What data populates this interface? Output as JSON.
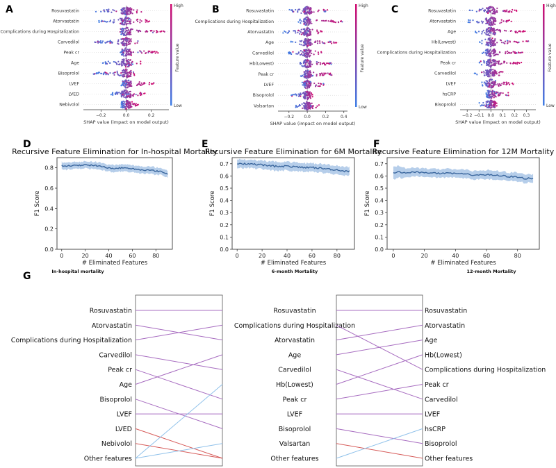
{
  "panels": {
    "shap_a_label": "A",
    "shap_b_label": "B",
    "shap_c_label": "C",
    "rfe_d_label": "D",
    "rfe_e_label": "E",
    "rfe_f_label": "F",
    "rank_g_label": "G"
  },
  "colors": {
    "high": "#d10a6f",
    "low": "#3f7fe6",
    "purple": "#a76cc0",
    "blue_line": "#8fc1ea",
    "red_line": "#d65a58",
    "rfe_line": "#3b679e",
    "rfe_band": "#a9c5e6"
  },
  "chart_data": [
    {
      "id": "A",
      "type": "scatter",
      "subtype": "shap-beeswarm",
      "features": [
        "Rosuvastatin",
        "Atorvastatin",
        "Complications during Hospitalization",
        "Carvedilol",
        "Peak cr",
        "Age",
        "Bisoprolol",
        "LVEF",
        "LVED",
        "Nebivolol"
      ],
      "xticks": [
        "−0.2",
        "0.0",
        "0.2"
      ],
      "xtick_values": [
        -0.2,
        0.0,
        0.2
      ],
      "xlim": [
        -0.34,
        0.34
      ],
      "spread": [
        [
          -0.28,
          0.18
        ],
        [
          -0.22,
          0.2
        ],
        [
          -0.05,
          0.32
        ],
        [
          -0.25,
          0.1
        ],
        [
          -0.05,
          0.26
        ],
        [
          -0.2,
          0.12
        ],
        [
          -0.26,
          0.08
        ],
        [
          -0.03,
          0.22
        ],
        [
          -0.12,
          0.15
        ],
        [
          -0.04,
          0.1
        ]
      ],
      "xlabel": "SHAP value (impact on model output)",
      "colorbar_label": "Feature value",
      "colorbar_high": "High",
      "colorbar_low": "Low"
    },
    {
      "id": "B",
      "type": "scatter",
      "subtype": "shap-beeswarm",
      "features": [
        "Rosuvastatin",
        "Complications during Hospitalization",
        "Atorvastatin",
        "Age",
        "Carvedilol",
        "Hb(Lowest)",
        "Peak cr",
        "LVEF",
        "Bisoprolol",
        "Valsartan"
      ],
      "xticks": [
        "−0.2",
        "0.0",
        "0.2",
        "0.4"
      ],
      "xtick_values": [
        -0.2,
        0.0,
        0.2,
        0.4
      ],
      "xlim": [
        -0.32,
        0.44
      ],
      "spread": [
        [
          -0.22,
          0.22
        ],
        [
          -0.1,
          0.4
        ],
        [
          -0.28,
          0.18
        ],
        [
          -0.18,
          0.34
        ],
        [
          -0.22,
          0.16
        ],
        [
          -0.1,
          0.28
        ],
        [
          -0.08,
          0.3
        ],
        [
          -0.06,
          0.22
        ],
        [
          -0.18,
          0.06
        ],
        [
          -0.14,
          0.14
        ]
      ],
      "xlabel": "SHAP value (impact on model output)",
      "colorbar_label": "Feature value",
      "colorbar_high": "High",
      "colorbar_low": "Low"
    },
    {
      "id": "C",
      "type": "scatter",
      "subtype": "shap-beeswarm",
      "features": [
        "Rosuvastatin",
        "Atorvastatin",
        "Age",
        "Hb(Lowest)",
        "Complications during Hospitalization",
        "Peak cr",
        "Carvedilol",
        "LVEF",
        "hsCRP",
        "Bisoprolol"
      ],
      "xticks": [
        "−0.2",
        "−0.1",
        "0.0",
        "0.1",
        "0.2",
        "0.3"
      ],
      "xtick_values": [
        -0.2,
        -0.1,
        0.0,
        0.1,
        0.2,
        0.3
      ],
      "xlim": [
        -0.26,
        0.38
      ],
      "spread": [
        [
          -0.18,
          0.22
        ],
        [
          -0.2,
          0.18
        ],
        [
          -0.14,
          0.3
        ],
        [
          -0.1,
          0.32
        ],
        [
          -0.08,
          0.28
        ],
        [
          -0.1,
          0.26
        ],
        [
          -0.14,
          0.14
        ],
        [
          -0.08,
          0.2
        ],
        [
          -0.04,
          0.16
        ],
        [
          -0.1,
          0.06
        ]
      ],
      "xlabel": "SHAP value (impact on model output)",
      "colorbar_label": "Feature value",
      "colorbar_high": "High",
      "colorbar_low": "Low"
    },
    {
      "id": "D",
      "type": "line",
      "title": "Recursive Feature Elimination for In-hospital Mortality",
      "xlabel": "# Eliminated Features",
      "ylabel": "F1 Score",
      "xlim": [
        -4,
        94
      ],
      "ylim": [
        0.0,
        0.9
      ],
      "xticks": [
        0,
        20,
        40,
        60,
        80
      ],
      "yticks": [
        0.0,
        0.2,
        0.4,
        0.6,
        0.8
      ],
      "x": [
        0,
        10,
        20,
        30,
        40,
        45,
        50,
        60,
        70,
        80,
        85,
        90
      ],
      "y": [
        0.82,
        0.82,
        0.83,
        0.82,
        0.8,
        0.79,
        0.8,
        0.79,
        0.78,
        0.77,
        0.76,
        0.74
      ],
      "band": [
        0.03,
        0.03,
        0.03,
        0.03,
        0.03,
        0.03,
        0.03,
        0.03,
        0.03,
        0.03,
        0.03,
        0.03
      ]
    },
    {
      "id": "E",
      "type": "line",
      "title": "Recursive Feature Elimination for 6M Mortality",
      "xlabel": "# Eliminated Features",
      "ylabel": "F1 Score",
      "xlim": [
        -4,
        94
      ],
      "ylim": [
        0.0,
        0.75
      ],
      "xticks": [
        0,
        20,
        40,
        60,
        80
      ],
      "yticks": [
        0.0,
        0.1,
        0.2,
        0.3,
        0.4,
        0.5,
        0.6,
        0.7
      ],
      "x": [
        0,
        10,
        20,
        30,
        40,
        50,
        60,
        70,
        80,
        85,
        90
      ],
      "y": [
        0.7,
        0.7,
        0.69,
        0.68,
        0.68,
        0.67,
        0.67,
        0.66,
        0.65,
        0.64,
        0.64
      ],
      "band": [
        0.03,
        0.03,
        0.03,
        0.03,
        0.03,
        0.03,
        0.03,
        0.03,
        0.03,
        0.03,
        0.03
      ]
    },
    {
      "id": "F",
      "type": "line",
      "title": "Recursive Feature Elimination for 12M Mortality",
      "xlabel": "# Eliminated Features",
      "ylabel": "F1 Score",
      "xlim": [
        -4,
        94
      ],
      "ylim": [
        0.0,
        0.75
      ],
      "xticks": [
        0,
        20,
        40,
        60,
        80
      ],
      "yticks": [
        0.0,
        0.1,
        0.2,
        0.3,
        0.4,
        0.5,
        0.6,
        0.7
      ],
      "x": [
        0,
        10,
        20,
        30,
        40,
        50,
        60,
        70,
        80,
        85,
        90
      ],
      "y": [
        0.63,
        0.63,
        0.63,
        0.62,
        0.62,
        0.61,
        0.61,
        0.6,
        0.59,
        0.58,
        0.58
      ],
      "band": [
        0.05,
        0.03,
        0.03,
        0.03,
        0.03,
        0.03,
        0.03,
        0.03,
        0.03,
        0.03,
        0.03
      ]
    },
    {
      "id": "G",
      "type": "table",
      "subtype": "rank-comparison",
      "columns": [
        {
          "title": "In-hospital mortality",
          "features": [
            "Rosuvastatin",
            "Atorvastatin",
            "Complications during Hospitalization",
            "Carvedilol",
            "Peak cr",
            "Age",
            "Bisoprolol",
            "LVEF",
            "LVED",
            "Nebivolol",
            "Other features"
          ]
        },
        {
          "title": "6-month Mortality",
          "features": [
            "Rosuvastatin",
            "Complications during Hospitalization",
            "Atorvastatin",
            "Age",
            "Carvedilol",
            "Hb(Lowest)",
            "Peak cr",
            "LVEF",
            "Bisoprolol",
            "Valsartan",
            "Other features"
          ]
        },
        {
          "title": "12-month Mortality",
          "features": [
            "Rosuvastatin",
            "Atorvastatin",
            "Age",
            "Hb(Lowest)",
            "Complications during Hospitalization",
            "Peak cr",
            "Carvedilol",
            "LVEF",
            "hsCRP",
            "Bisoprolol",
            "Other features"
          ]
        }
      ],
      "links_left": [
        {
          "from": 0,
          "to": 0,
          "color": "purple"
        },
        {
          "from": 1,
          "to": 2,
          "color": "purple"
        },
        {
          "from": 2,
          "to": 1,
          "color": "purple"
        },
        {
          "from": 3,
          "to": 4,
          "color": "purple"
        },
        {
          "from": 4,
          "to": 6,
          "color": "purple"
        },
        {
          "from": 5,
          "to": 3,
          "color": "purple"
        },
        {
          "from": 6,
          "to": 8,
          "color": "purple"
        },
        {
          "from": 7,
          "to": 7,
          "color": "purple"
        },
        {
          "from": 8,
          "to": 10,
          "color": "red"
        },
        {
          "from": 9,
          "to": 10,
          "color": "red"
        },
        {
          "from": 10,
          "to": 5,
          "color": "blue"
        },
        {
          "from": 10,
          "to": 9,
          "color": "blue"
        }
      ],
      "links_right": [
        {
          "from": 0,
          "to": 0,
          "color": "purple"
        },
        {
          "from": 1,
          "to": 4,
          "color": "purple"
        },
        {
          "from": 2,
          "to": 1,
          "color": "purple"
        },
        {
          "from": 3,
          "to": 2,
          "color": "purple"
        },
        {
          "from": 4,
          "to": 6,
          "color": "purple"
        },
        {
          "from": 5,
          "to": 3,
          "color": "purple"
        },
        {
          "from": 6,
          "to": 5,
          "color": "purple"
        },
        {
          "from": 7,
          "to": 7,
          "color": "purple"
        },
        {
          "from": 8,
          "to": 9,
          "color": "purple"
        },
        {
          "from": 9,
          "to": 10,
          "color": "red"
        },
        {
          "from": 10,
          "to": 8,
          "color": "blue"
        }
      ]
    }
  ]
}
